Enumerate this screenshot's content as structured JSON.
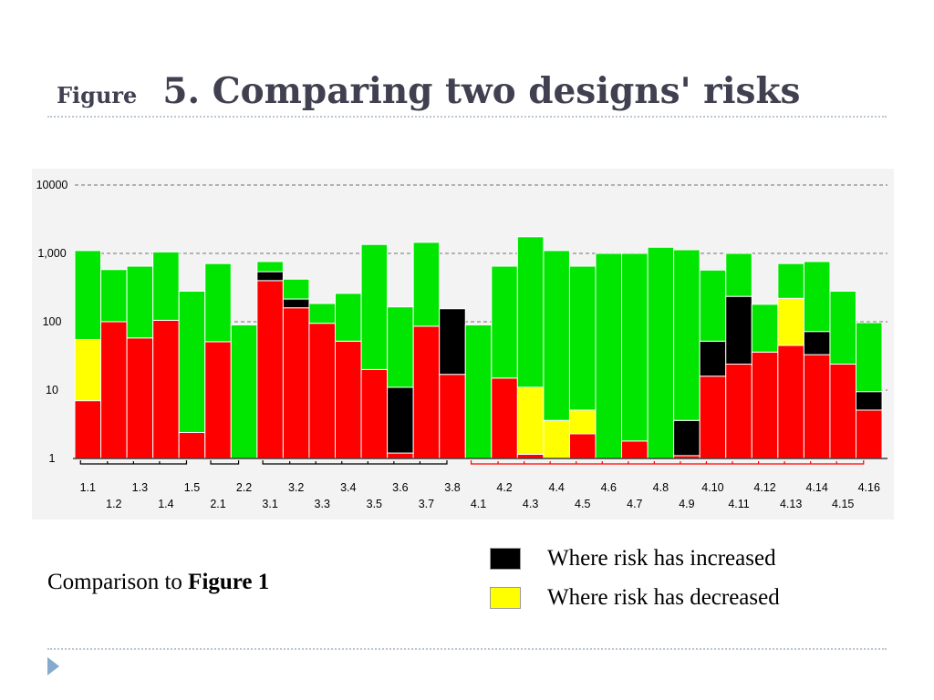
{
  "slide": {
    "title_prefix": "Figure",
    "title": "5. Comparing two designs' risks",
    "caption_text": "Comparison to ",
    "caption_bold": "Figure 1",
    "title_color": "#404050",
    "accent_color": "#86aacb"
  },
  "chart_data": {
    "type": "bar",
    "stacked": true,
    "y_scale": "log",
    "ylim": [
      1,
      10000
    ],
    "y_ticks": [
      1,
      10,
      100,
      1000,
      10000
    ],
    "y_tick_labels": [
      "1",
      "10",
      "100",
      "1,000",
      "10000"
    ],
    "grid": true,
    "categories": [
      "1.1",
      "1.2",
      "1.3",
      "1.4",
      "1.5",
      "2.1",
      "2.2",
      "3.1",
      "3.2",
      "3.3",
      "3.4",
      "3.5",
      "3.6",
      "3.7",
      "3.8",
      "4.1",
      "4.2",
      "4.3",
      "4.4",
      "4.5",
      "4.6",
      "4.7",
      "4.8",
      "4.9",
      "4.10",
      "4.11",
      "4.12",
      "4.13",
      "4.14",
      "4.15",
      "4.16"
    ],
    "groups": [
      {
        "from": 0,
        "to": 4,
        "color": "#000000"
      },
      {
        "from": 5,
        "to": 6,
        "color": "#000000"
      },
      {
        "from": 7,
        "to": 14,
        "color": "#000000"
      },
      {
        "from": 15,
        "to": 30,
        "color": "#ff0000"
      }
    ],
    "series": [
      {
        "color": "#ff0000",
        "values": [
          7,
          100,
          58,
          105,
          2.4,
          51,
          null,
          400,
          160,
          95,
          52,
          20,
          1.2,
          86,
          17,
          null,
          15,
          1.15,
          null,
          2.3,
          null,
          1.8,
          null,
          1.1,
          16,
          24,
          36,
          45,
          33,
          24,
          5.1
        ]
      },
      {
        "color": "#000000",
        "values": [
          null,
          null,
          null,
          null,
          null,
          null,
          null,
          540,
          215,
          null,
          null,
          null,
          11,
          null,
          155,
          null,
          null,
          null,
          null,
          null,
          null,
          null,
          null,
          3.6,
          52,
          235,
          null,
          null,
          72,
          null,
          9.5
        ]
      },
      {
        "color": "#ffff00",
        "values": [
          55,
          null,
          null,
          null,
          null,
          null,
          null,
          null,
          null,
          null,
          null,
          null,
          null,
          null,
          null,
          null,
          null,
          11,
          3.6,
          5.1,
          null,
          null,
          null,
          null,
          null,
          null,
          null,
          220,
          null,
          null,
          null
        ]
      },
      {
        "color": "#00e600",
        "values": [
          1100,
          580,
          650,
          1050,
          280,
          710,
          90,
          760,
          420,
          185,
          260,
          1350,
          165,
          1450,
          null,
          90,
          650,
          1750,
          1100,
          650,
          1000,
          1000,
          1230,
          1130,
          570,
          1000,
          180,
          710,
          760,
          280,
          97
        ]
      }
    ],
    "legend": [
      {
        "label": "Where risk has increased",
        "color": "#000000"
      },
      {
        "label": "Where risk has decreased",
        "color": "#ffff00"
      }
    ]
  }
}
